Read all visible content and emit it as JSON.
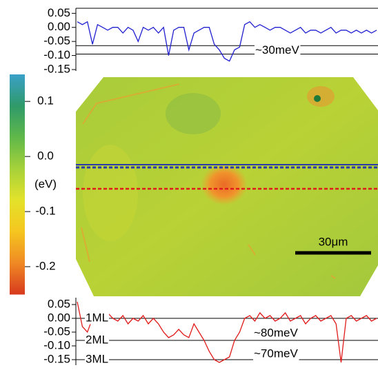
{
  "chart_data": [
    {
      "type": "line",
      "ylim": [
        -0.155,
        0.068
      ],
      "yticks": [
        {
          "value": 0.05,
          "label": "0.05"
        },
        {
          "value": 0,
          "label": "0.00"
        },
        {
          "value": -0.05,
          "label": "-0.05"
        },
        {
          "value": -0.1,
          "label": "-0.10"
        },
        {
          "value": -0.15,
          "label": "-0.15"
        }
      ],
      "reference_lines": [
        -0.065,
        -0.095
      ],
      "annotations": [
        "~30meV"
      ],
      "series": [
        {
          "color": "#1f1fd0",
          "values": [
            0.02,
            0.01,
            0.02,
            -0.06,
            0.01,
            0.0,
            -0.01,
            0.0,
            0.0,
            -0.02,
            0.0,
            -0.01,
            -0.05,
            0.0,
            -0.01,
            0.0,
            -0.02,
            0.0,
            -0.1,
            -0.01,
            0.0,
            0.0,
            -0.08,
            -0.02,
            -0.01,
            0.0,
            0.0,
            -0.06,
            -0.08,
            -0.11,
            -0.12,
            -0.08,
            -0.07,
            0.01,
            0.02,
            0.0,
            0.01,
            0.0,
            -0.01,
            0.0,
            0.0,
            -0.01,
            -0.02,
            -0.01,
            0.0,
            -0.02,
            -0.01,
            -0.01,
            -0.02,
            -0.01,
            0.0,
            -0.02,
            -0.01,
            -0.01,
            -0.02,
            -0.01,
            -0.02,
            -0.01,
            -0.02,
            -0.01
          ]
        }
      ]
    },
    {
      "type": "line",
      "ylim": [
        -0.17,
        0.075
      ],
      "yticks": [
        {
          "value": 0.05,
          "label": "0.05"
        },
        {
          "value": 0,
          "label": "0.00"
        },
        {
          "value": -0.05,
          "label": "-0.05"
        },
        {
          "value": -0.1,
          "label": "-0.10"
        },
        {
          "value": -0.15,
          "label": "-0.15"
        }
      ],
      "reference_lines": [
        0,
        -0.08,
        -0.15
      ],
      "reference_labels": [
        "1ML",
        "2ML",
        "3ML"
      ],
      "annotations": [
        "~80meV",
        "~70meV"
      ],
      "series": [
        {
          "color": "#e01a1a",
          "values": [
            0.06,
            -0.03,
            -0.05,
            0.0,
            0.01,
            -0.01,
            0.02,
            0.0,
            -0.01,
            0.01,
            -0.02,
            0.0,
            -0.01,
            0.01,
            -0.02,
            0.0,
            -0.02,
            -0.05,
            -0.07,
            -0.06,
            -0.04,
            -0.06,
            -0.07,
            -0.02,
            -0.05,
            -0.08,
            -0.12,
            -0.15,
            -0.16,
            -0.15,
            -0.14,
            -0.08,
            -0.05,
            0.0,
            0.01,
            -0.01,
            0.02,
            0.0,
            0.01,
            -0.01,
            0.0,
            0.02,
            -0.01,
            0.0,
            0.01,
            -0.02,
            0.0,
            0.01,
            -0.01,
            0.0,
            0.01,
            -0.02,
            -0.16,
            0.0,
            0.01,
            -0.01,
            0.0,
            0.01,
            -0.01,
            0.0
          ]
        }
      ]
    },
    {
      "type": "colorbar",
      "ylim": [
        -0.25,
        0.149
      ],
      "yticks": [
        {
          "value": 0.1,
          "label": "0.1"
        },
        {
          "value": 0,
          "label": "0.0"
        },
        {
          "value": -0.1,
          "label": "-0.1"
        },
        {
          "value": -0.2,
          "label": "-0.2"
        }
      ],
      "unit_label": "(eV)",
      "colors": [
        "#d73a1e",
        "#f08a24",
        "#f5c61f",
        "#e3e22a",
        "#a6d13a",
        "#5fb84a",
        "#2f9a6a",
        "#3aa0c8"
      ]
    },
    {
      "type": "image",
      "scale_bar_label": "30μm"
    }
  ]
}
